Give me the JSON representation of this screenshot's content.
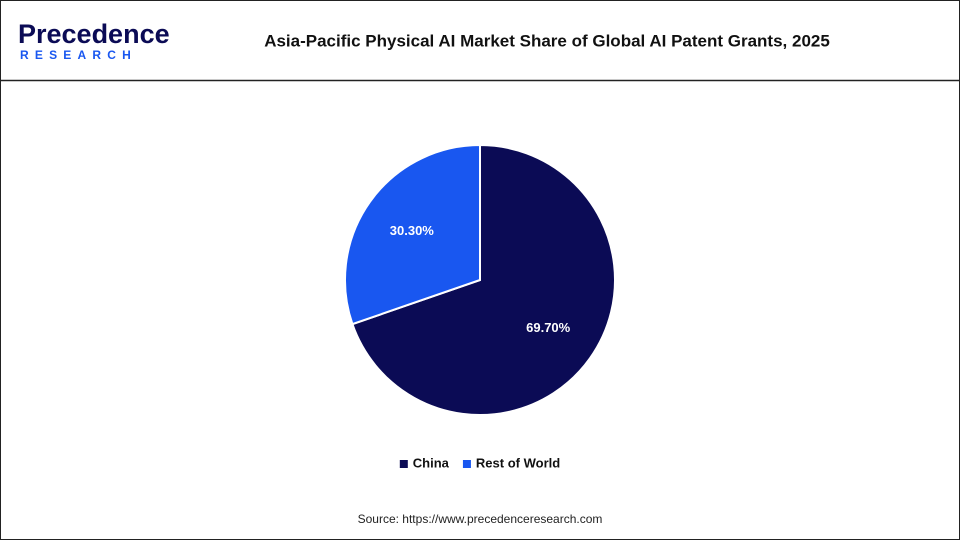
{
  "logo": {
    "name": "Precedence",
    "tagline": "RESEARCH"
  },
  "chart_data": {
    "type": "pie",
    "title": "Asia-Pacific Physical AI Market Share of Global AI Patent Grants, 2025",
    "categories": [
      "China",
      "Rest of World"
    ],
    "values": [
      69.7,
      30.3
    ],
    "value_labels": [
      "69.70%",
      "30.30%"
    ],
    "colors": [
      "#0b0b55",
      "#1957f0"
    ],
    "source": "Source: https://www.precedenceresearch.com"
  }
}
